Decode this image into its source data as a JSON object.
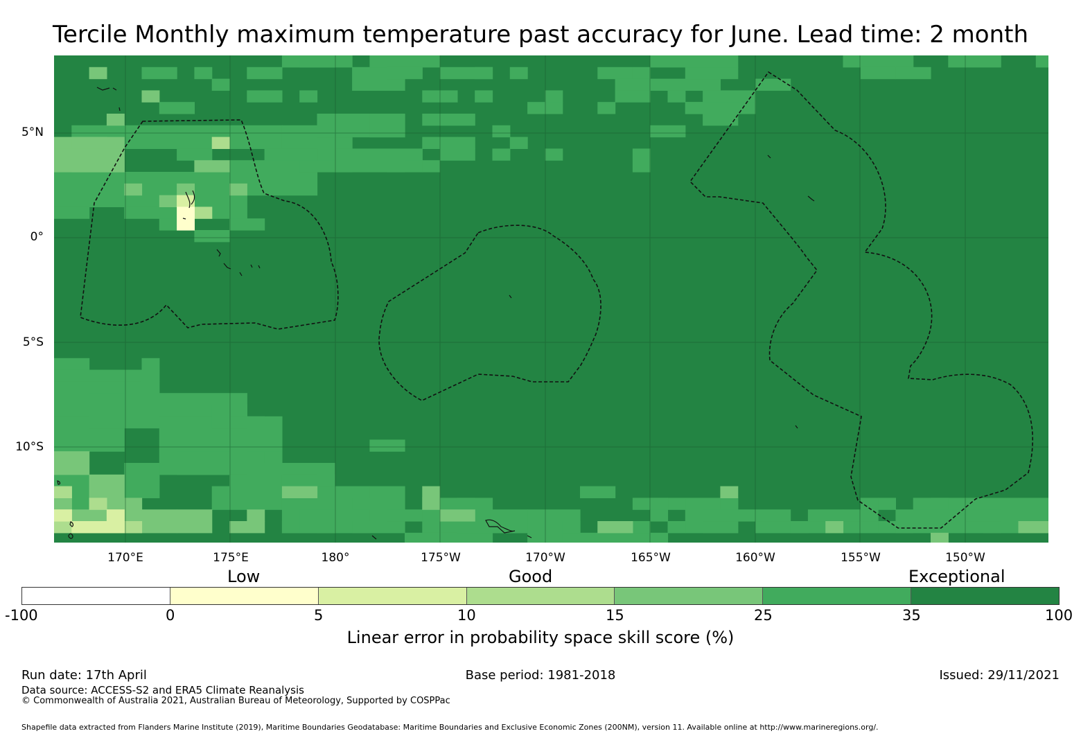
{
  "title": "Tercile Monthly maximum temperature past accuracy for June. Lead time: 2 month",
  "map": {
    "background": "#238443",
    "lat_labels": [
      "5°N",
      "0°",
      "5°S",
      "10°S"
    ],
    "lon_labels": [
      "170°E",
      "175°E",
      "180°",
      "175°W",
      "170°W",
      "165°W",
      "160°W",
      "155°W",
      "150°W"
    ]
  },
  "colorbar": {
    "categories": [
      "Low",
      "Good",
      "Exceptional"
    ],
    "ticks": [
      "-100",
      "0",
      "5",
      "10",
      "15",
      "25",
      "35",
      "100"
    ],
    "colors": [
      "#ffffff",
      "#ffffcc",
      "#d9f0a3",
      "#addd8e",
      "#78c679",
      "#41ab5d",
      "#238443"
    ],
    "label": "Linear error in probability space skill score (%)"
  },
  "footer": {
    "run_date": "Run date: 17th April",
    "base_period": "Base period: 1981-2018",
    "issued": "Issued: 29/11/2021",
    "data_source": "Data source: ACCESS-S2 and ERA5 Climate Reanalysis",
    "copyright": "© Commonwealth of Australia 2021, Australian Bureau of Meteorology, Supported by COSPPac",
    "shapefile": "Shapefile data extracted from Flanders Marine Institute (2019), Maritime Boundaries Geodatabase: Maritime Boundaries and Exclusive Economic Zones (200NM), version 11. Available online at http://www.marineregions.org/."
  }
}
